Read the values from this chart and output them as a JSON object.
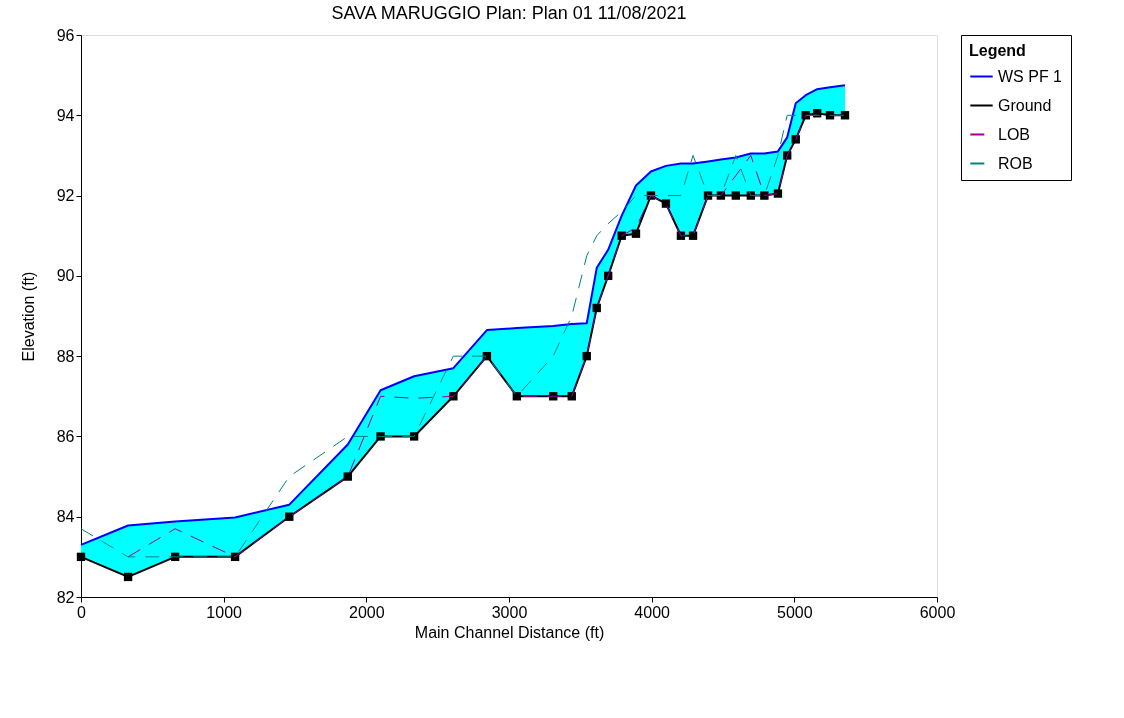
{
  "chart_data": {
    "type": "line",
    "title": "SAVA MARUGGIO    Plan: Plan 01    11/08/2021",
    "xlabel": "Main Channel Distance (ft)",
    "ylabel": "Elevation (ft)",
    "legend_title": "Legend",
    "legend": "top right",
    "grid": false,
    "x": [
      0,
      330,
      660,
      1080,
      1460,
      1870,
      2100,
      2335,
      2610,
      2845,
      3055,
      3310,
      3440,
      3545,
      3615,
      3695,
      3790,
      3890,
      3995,
      4100,
      4205,
      4290,
      4395,
      4485,
      4590,
      4695,
      4790,
      4885,
      4950,
      5010,
      5080,
      5160,
      5250,
      5355
    ],
    "xlim": [
      0,
      6000
    ],
    "xticks": [
      0,
      1000,
      2000,
      3000,
      4000,
      5000,
      6000
    ],
    "ylim": [
      82,
      96
    ],
    "yticks": [
      82,
      84,
      86,
      88,
      90,
      92,
      94,
      96
    ],
    "series": [
      {
        "name": "WS PF 1",
        "color": "#0000ff",
        "line_style": "solid",
        "marker": "none",
        "values": [
          83.3,
          83.78,
          83.88,
          83.98,
          84.3,
          85.8,
          87.15,
          87.5,
          87.7,
          88.65,
          88.7,
          88.75,
          88.8,
          88.82,
          90.2,
          90.65,
          91.5,
          92.25,
          92.6,
          92.74,
          92.8,
          92.8,
          92.85,
          92.9,
          92.95,
          93.05,
          93.05,
          93.1,
          93.45,
          94.3,
          94.5,
          94.65,
          94.7,
          94.75
        ],
        "lower": [
          83,
          82.5,
          83,
          83,
          84,
          85,
          86,
          86,
          87,
          88,
          87,
          87,
          87,
          88,
          89.2,
          90,
          91,
          91.05,
          92,
          91.8,
          91,
          91,
          92,
          92,
          92,
          92,
          92,
          92.05,
          93,
          93.4,
          94,
          94.05,
          94,
          94
        ],
        "upper": [
          83.3,
          83.78,
          83.88,
          83.98,
          84.3,
          85.8,
          87.15,
          87.5,
          87.7,
          88.65,
          88.7,
          88.75,
          88.8,
          88.82,
          90.2,
          90.65,
          91.5,
          92.25,
          92.6,
          92.74,
          92.8,
          92.8,
          92.85,
          92.9,
          92.95,
          93.05,
          93.05,
          93.1,
          93.45,
          94.3,
          94.5,
          94.65,
          94.7,
          94.75
        ]
      },
      {
        "name": "Ground",
        "color": "#000000",
        "line_style": "solid",
        "marker": "square",
        "values": [
          83,
          82.5,
          83,
          83,
          84,
          85,
          86,
          86,
          87,
          88,
          87,
          87,
          87,
          88,
          89.2,
          90,
          91,
          91.05,
          92,
          91.8,
          91,
          91,
          92,
          92,
          92,
          92,
          92,
          92.05,
          93,
          93.4,
          94,
          94.05,
          94,
          94
        ]
      },
      {
        "name": "LOB",
        "color": "#990099",
        "line_style": "dashed",
        "marker": "none",
        "values": [
          null,
          83,
          83.7,
          83,
          84,
          85,
          87,
          86.95,
          87,
          88,
          87,
          87,
          87,
          88,
          89.2,
          90,
          91,
          91.2,
          92,
          91.8,
          91,
          91,
          92,
          92,
          92.5,
          93,
          92,
          92.05,
          93,
          93.4,
          94,
          94,
          null,
          null
        ]
      },
      {
        "name": "ROB",
        "color": "#008080",
        "line_style": "dashed",
        "marker": "none",
        "values": [
          83.7,
          83,
          83,
          83,
          85,
          86,
          86,
          86,
          88,
          88,
          87,
          88,
          89,
          90.5,
          91,
          91.3,
          91.6,
          92,
          92,
          92,
          92,
          93,
          92,
          92,
          93,
          92,
          92,
          93,
          94,
          94,
          94,
          94,
          94,
          94
        ]
      }
    ]
  }
}
